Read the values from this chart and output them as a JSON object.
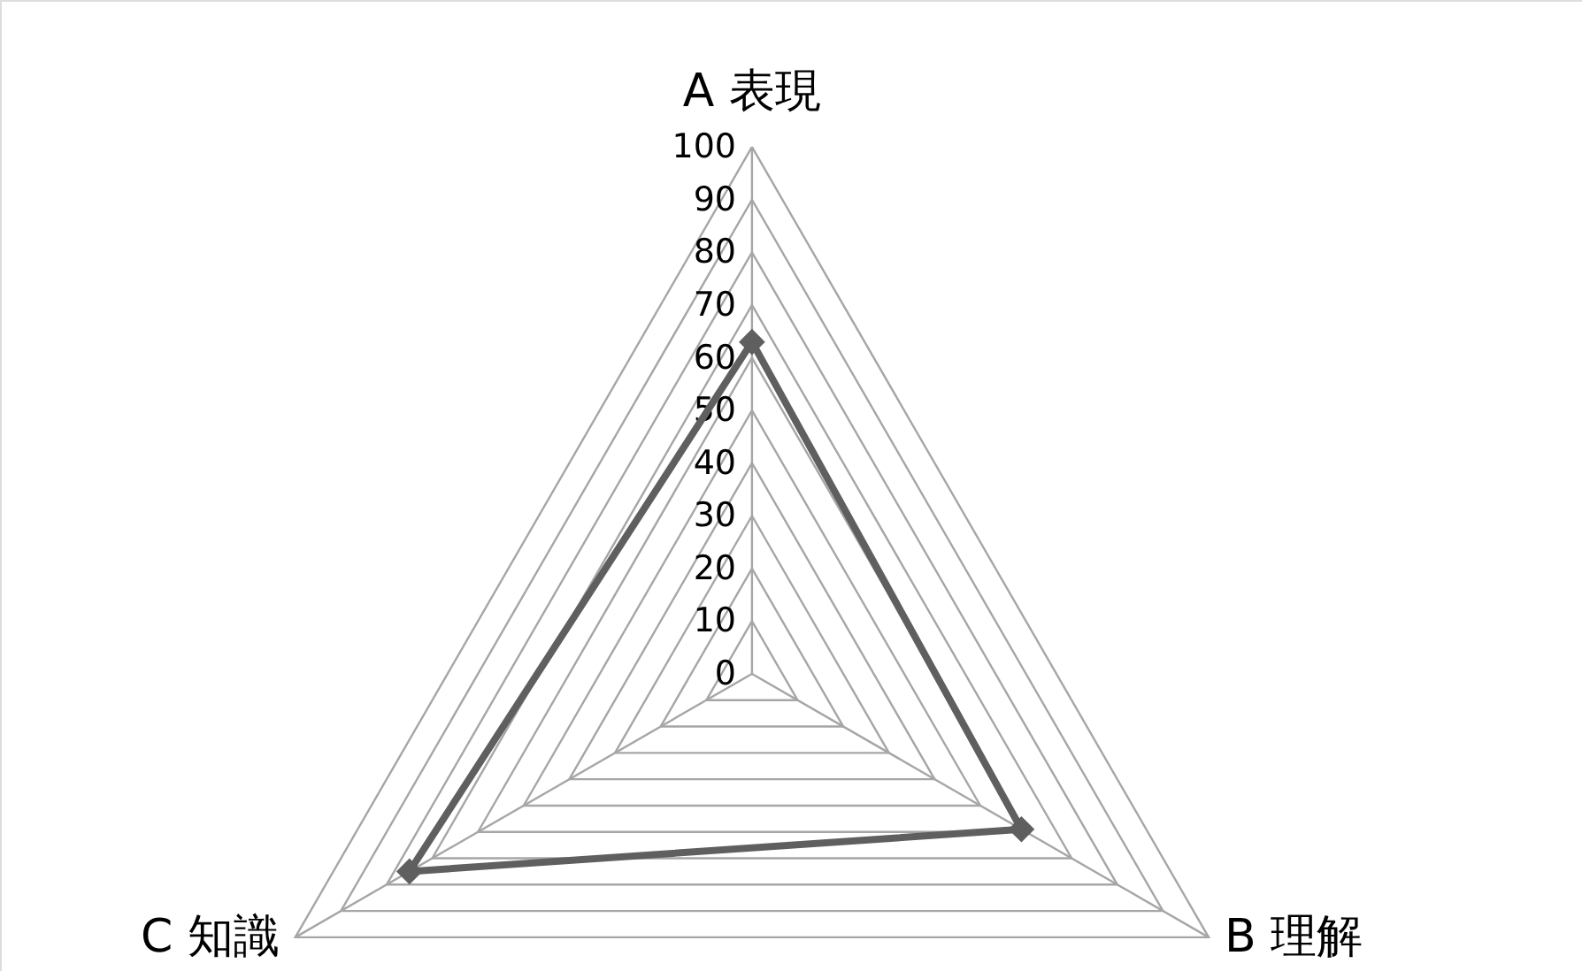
{
  "chart_data": {
    "type": "radar",
    "categories": [
      "A 表現",
      "B 理解",
      "C 知識"
    ],
    "series": [
      {
        "color": "#5f5f5f",
        "values": [
          63,
          59,
          75
        ]
      }
    ],
    "ylim": [
      0,
      100
    ],
    "yticks": [
      0,
      10,
      20,
      30,
      40,
      50,
      60,
      70,
      80,
      90,
      100
    ],
    "marker": "diamond",
    "grid": true
  }
}
